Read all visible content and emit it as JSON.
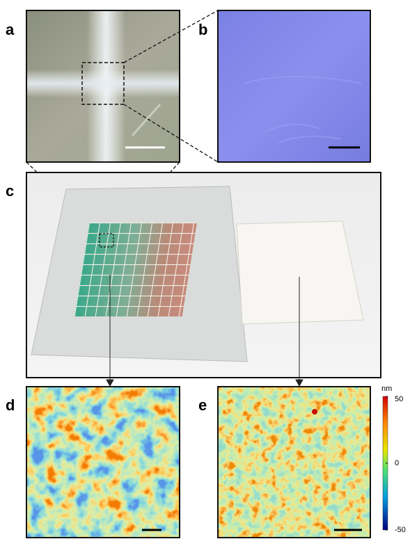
{
  "panels": {
    "labels": [
      "a",
      "b",
      "c",
      "d",
      "e"
    ]
  },
  "colorbar": {
    "unit": "nm",
    "range": [
      -50,
      50
    ],
    "ticks": [
      50,
      0,
      -50
    ]
  }
}
